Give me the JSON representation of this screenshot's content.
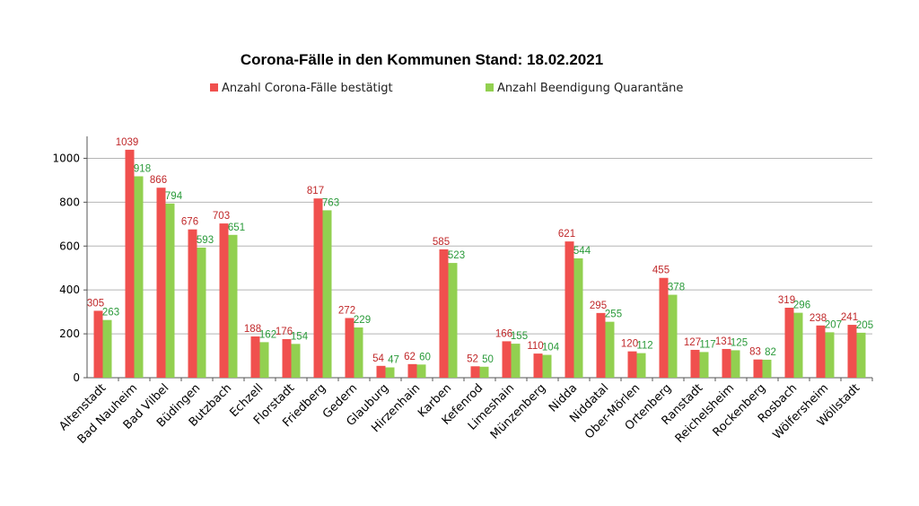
{
  "chart_data": {
    "type": "bar",
    "title": "Corona-Fälle in den Kommunen Stand: 18.02.2021",
    "xlabel": "",
    "ylabel": "",
    "ylim": [
      0,
      1100
    ],
    "yticks": [
      0,
      200,
      400,
      600,
      800,
      1000
    ],
    "grid": true,
    "legend_position": "top",
    "categories": [
      "Altenstadt",
      "Bad Nauheim",
      "Bad Vilbel",
      "Büdingen",
      "Butzbach",
      "Echzell",
      "Florstadt",
      "Friedberg",
      "Gedern",
      "Glauburg",
      "Hirzenhain",
      "Karben",
      "Kefenrod",
      "Limeshain",
      "Münzenberg",
      "Nidda",
      "Niddatal",
      "Ober-Mörlen",
      "Ortenberg",
      "Ranstadt",
      "Reichelsheim",
      "Rockenberg",
      "Rosbach",
      "Wölfersheim",
      "Wöllstadt"
    ],
    "series": [
      {
        "name": "Anzahl Corona-Fälle bestätigt",
        "color": "#f0504e",
        "label_color": "#c0282a",
        "values": [
          305,
          1039,
          866,
          676,
          703,
          188,
          176,
          817,
          272,
          54,
          62,
          585,
          52,
          166,
          110,
          621,
          295,
          120,
          455,
          127,
          131,
          83,
          319,
          238,
          241
        ]
      },
      {
        "name": "Anzahl Beendigung Quarantäne",
        "color": "#92d050",
        "label_color": "#2a9a3a",
        "values": [
          263,
          918,
          794,
          593,
          651,
          162,
          154,
          763,
          229,
          47,
          60,
          523,
          50,
          155,
          104,
          544,
          255,
          112,
          378,
          117,
          125,
          82,
          296,
          207,
          205
        ]
      }
    ]
  }
}
